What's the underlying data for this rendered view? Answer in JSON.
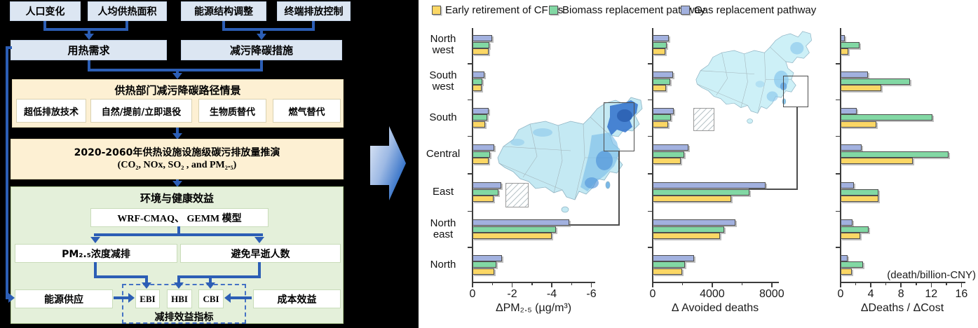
{
  "flowchart": {
    "inputs": [
      "人口变化",
      "人均供热面积",
      "能源结构调整",
      "终端排放控制"
    ],
    "heat_demand": "用热需求",
    "measures": "减污降碳措施",
    "scenario": {
      "title": "供热部门减污降碳路径情景",
      "options": [
        "超低排放技术",
        "自然/提前/立即退役",
        "生物质替代",
        "燃气替代"
      ]
    },
    "projection": {
      "line1": "2020-2060年供热设施设施级碳污排放量推演",
      "line2": "(CO₂, NOx, SO₂ , and PM₂.₅)"
    },
    "benefits": {
      "title": "环境与健康效益",
      "models": "WRF-CMAQ、 GEMM 模型",
      "pm": "PM₂.₅浓度减排",
      "deaths": "避免早逝人数",
      "energy": "能源供应",
      "cost": "成本效益",
      "indicators": [
        "EBI",
        "HBI",
        "CBI"
      ],
      "indicator_label": "减排效益指标"
    }
  },
  "legend": [
    {
      "label": "Early retirement of CFIBs",
      "color": "#FBD765"
    },
    {
      "label": "Biomass replacement pathway",
      "color": "#82D8A4"
    },
    {
      "label": "Gas replacement pathway",
      "color": "#A2B1DF"
    }
  ],
  "chart_data": [
    {
      "type": "bar",
      "orientation": "horizontal",
      "xlabel": "ΔPM₂.₅ (µg/m³)",
      "categories": [
        "North west",
        "South west",
        "South",
        "Central",
        "East",
        "North east",
        "North"
      ],
      "series": [
        {
          "name": "Gas replacement pathway",
          "color": "#A2B1DF",
          "values": [
            -1.0,
            -0.6,
            -0.8,
            -1.1,
            -1.45,
            -4.9,
            -1.5
          ]
        },
        {
          "name": "Biomass replacement pathway",
          "color": "#82D8A4",
          "values": [
            -0.85,
            -0.5,
            -0.75,
            -0.9,
            -1.3,
            -4.2,
            -1.2
          ]
        },
        {
          "name": "Early retirement of CFIBs",
          "color": "#FBD765",
          "values": [
            -0.8,
            -0.45,
            -0.65,
            -0.8,
            -1.05,
            -4.0,
            -1.1
          ]
        }
      ],
      "xticks": [
        0,
        -2,
        -4,
        -6
      ],
      "xlim": [
        0,
        -6.2
      ],
      "grid": false,
      "legend_position": "top"
    },
    {
      "type": "bar",
      "orientation": "horizontal",
      "xlabel": "Δ Avoided deaths",
      "categories": [
        "North west",
        "South west",
        "South",
        "Central",
        "East",
        "North east",
        "North"
      ],
      "series": [
        {
          "name": "Gas replacement pathway",
          "color": "#A2B1DF",
          "values": [
            1100,
            1380,
            1430,
            2380,
            7600,
            5550,
            2800
          ]
        },
        {
          "name": "Biomass replacement pathway",
          "color": "#82D8A4",
          "values": [
            950,
            1190,
            1220,
            2140,
            6500,
            4800,
            2150
          ]
        },
        {
          "name": "Early retirement of CFIBs",
          "color": "#FBD765",
          "values": [
            830,
            900,
            1060,
            1870,
            5300,
            4500,
            2000
          ]
        }
      ],
      "xticks": [
        0,
        4000,
        8000
      ],
      "xlim": [
        0,
        8400
      ],
      "grid": false
    },
    {
      "type": "bar",
      "orientation": "horizontal",
      "xlabel": "ΔDeaths / ΔCost",
      "annotation": "(death/billion-CNY)",
      "categories": [
        "North west",
        "South west",
        "South",
        "Central",
        "East",
        "North east",
        "North"
      ],
      "series": [
        {
          "name": "Gas replacement pathway",
          "color": "#A2B1DF",
          "values": [
            0.6,
            3.6,
            2.1,
            2.8,
            1.8,
            1.6,
            0.9
          ]
        },
        {
          "name": "Biomass replacement pathway",
          "color": "#82D8A4",
          "values": [
            2.5,
            9.2,
            12.2,
            14.3,
            5.0,
            3.7,
            3.0
          ]
        },
        {
          "name": "Early retirement of CFIBs",
          "color": "#FBD765",
          "values": [
            1.0,
            5.4,
            4.7,
            9.6,
            5.0,
            2.6,
            1.5
          ]
        }
      ],
      "xticks": [
        0,
        4,
        8,
        12,
        16
      ],
      "xlim": [
        0,
        16.4
      ],
      "grid": false
    }
  ]
}
